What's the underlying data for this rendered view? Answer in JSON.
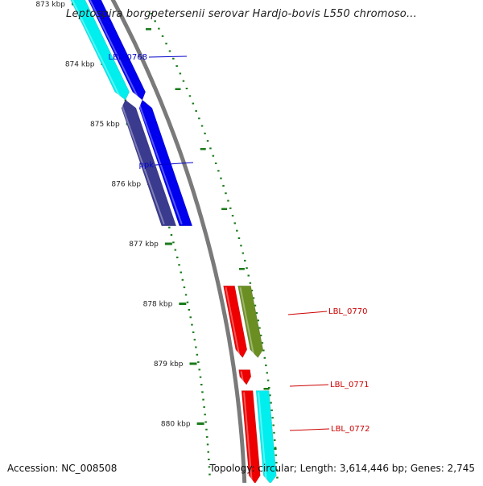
{
  "title": "Leptospira borgpetersenii serovar Hardjo-bovis L550 chromoso...",
  "footer": {
    "accession": "Accession: NC_008508",
    "summary": "Topology: circular; Length: 3,614,446 bp; Genes: 2,745"
  },
  "colors": {
    "backbone": "#7a7a7a",
    "tick": "#1a7a1a",
    "label_left": "#0000cc",
    "label_right": "#cc0000",
    "cds_blue": "#0000ee",
    "cds_cyan": "#00eeee",
    "cds_slate": "#3a3a8e",
    "cds_red": "#ee0000",
    "cds_olive": "#6b8e23"
  },
  "axis": {
    "unit": "kbp",
    "ticks": [
      {
        "kbp": 873,
        "label": "873 kbp"
      },
      {
        "kbp": 874,
        "label": "874 kbp"
      },
      {
        "kbp": 875,
        "label": "875 kbp"
      },
      {
        "kbp": 876,
        "label": "876 kbp"
      },
      {
        "kbp": 877,
        "label": "877 kbp"
      },
      {
        "kbp": 878,
        "label": "878 kbp"
      },
      {
        "kbp": 879,
        "label": "879 kbp"
      },
      {
        "kbp": 880,
        "label": "880 kbp"
      }
    ]
  },
  "features": [
    {
      "name": "LBL_0768",
      "label": "LBL_0768",
      "track": "inner-left",
      "strand": "-",
      "start_kbp": 872.8,
      "end_kbp": 874.6,
      "color": "#00eeee",
      "label_side": "left"
    },
    {
      "name": "LBL_0768",
      "label": "",
      "track": "outer-left",
      "strand": "-",
      "start_kbp": 872.8,
      "end_kbp": 874.6,
      "color": "#0000ee",
      "label_side": "none"
    },
    {
      "name": "ppk",
      "label": "ppk",
      "track": "inner-left",
      "strand": "+",
      "start_kbp": 874.6,
      "end_kbp": 876.7,
      "color": "#3a3a8e",
      "label_side": "left"
    },
    {
      "name": "ppk",
      "label": "",
      "track": "outer-left",
      "strand": "+",
      "start_kbp": 874.6,
      "end_kbp": 876.7,
      "color": "#0000ee",
      "label_side": "none"
    },
    {
      "name": "LBL_0770",
      "label": "LBL_0770",
      "track": "inner-right",
      "strand": "-",
      "start_kbp": 877.7,
      "end_kbp": 878.9,
      "color": "#ee0000",
      "label_side": "right"
    },
    {
      "name": "LBL_0770",
      "label": "",
      "track": "outer-right",
      "strand": "-",
      "start_kbp": 877.7,
      "end_kbp": 878.9,
      "color": "#6b8e23",
      "label_side": "none"
    },
    {
      "name": "LBL_0771",
      "label": "LBL_0771",
      "track": "inner-right",
      "strand": "-",
      "start_kbp": 879.1,
      "end_kbp": 879.35,
      "color": "#ee0000",
      "label_side": "right"
    },
    {
      "name": "LBL_0772",
      "label": "LBL_0772",
      "track": "inner-right",
      "strand": "-",
      "start_kbp": 879.45,
      "end_kbp": 881.0,
      "color": "#ee0000",
      "label_side": "right"
    },
    {
      "name": "LBL_0772",
      "label": "",
      "track": "outer-right",
      "strand": "-",
      "start_kbp": 879.45,
      "end_kbp": 881.0,
      "color": "#00eeee",
      "label_side": "none"
    }
  ]
}
